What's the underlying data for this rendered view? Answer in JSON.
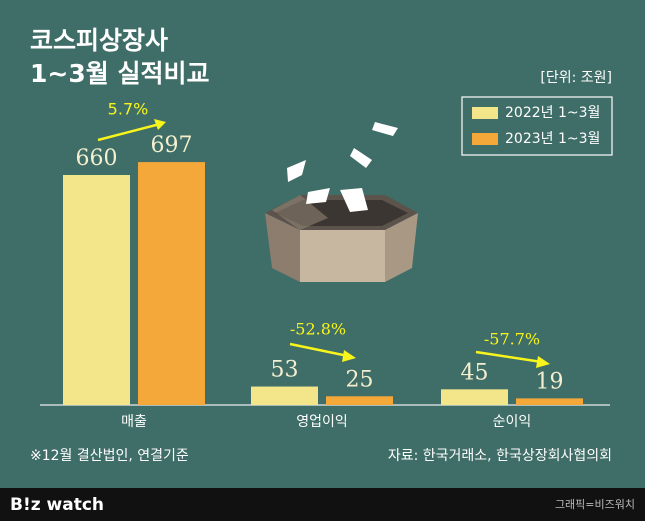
{
  "chart_data": {
    "type": "bar",
    "title": "코스피상장사",
    "subtitle": "1~3월 실적비교",
    "unit": "[단위: 조원]",
    "categories": [
      "매출",
      "영업이익",
      "순이익"
    ],
    "series": [
      {
        "name": "2022년 1~3월",
        "color": "#f2e58a",
        "values": [
          660,
          53,
          45
        ]
      },
      {
        "name": "2023년 1~3월",
        "color": "#f5a83a",
        "values": [
          697,
          25,
          19
        ]
      }
    ],
    "annotations": [
      "5.7%",
      "-52.8%",
      "-57.7%"
    ],
    "footnote": "※12월 결산법인, 연결기준",
    "source": "자료: 한국거래소, 한국상장회사협의회",
    "brand": "B!z watch",
    "credit": "그래픽=비즈워치"
  }
}
